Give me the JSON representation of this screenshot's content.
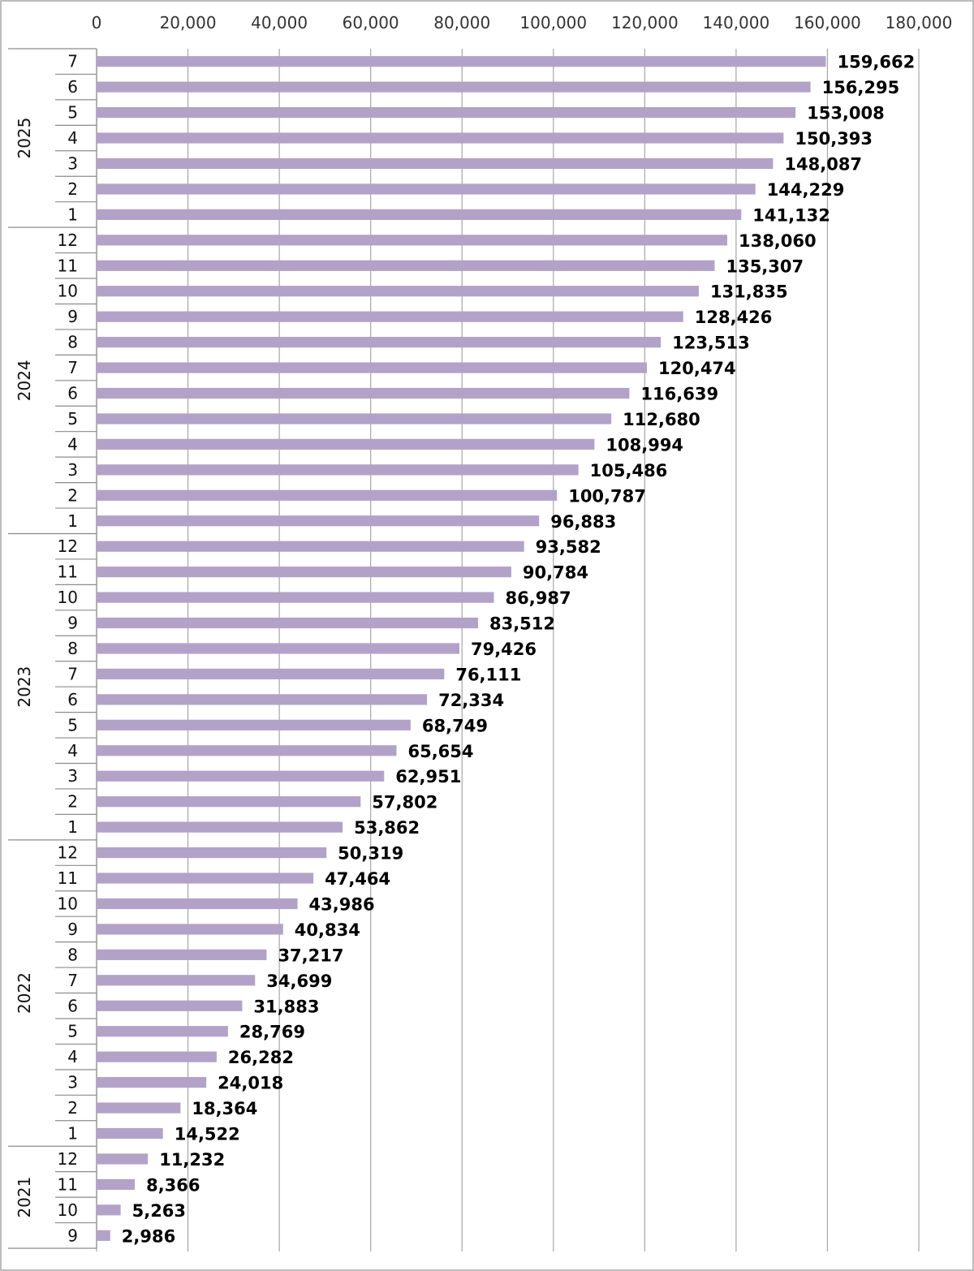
{
  "chart_data": {
    "type": "bar",
    "orientation": "horizontal",
    "title": "",
    "xlabel": "",
    "ylabel": "",
    "xlim": [
      0,
      180000
    ],
    "x_ticks": [
      "0",
      "20,000",
      "40,000",
      "60,000",
      "80,000",
      "100,000",
      "120,000",
      "140,000",
      "160,000",
      "180,000"
    ],
    "x_tick_values": [
      0,
      20000,
      40000,
      60000,
      80000,
      100000,
      120000,
      140000,
      160000,
      180000
    ],
    "x_axis_position": "top",
    "grid": "vertical",
    "legend": "none",
    "bar_color": "#b3a2c8",
    "years": [
      {
        "label": "2025",
        "months": [
          "7",
          "6",
          "5",
          "4",
          "3",
          "2",
          "1"
        ],
        "values": [
          159662,
          156295,
          153008,
          150393,
          148087,
          144229,
          141132
        ],
        "value_labels": [
          "159,662",
          "156,295",
          "153,008",
          "150,393",
          "148,087",
          "144,229",
          "141,132"
        ]
      },
      {
        "label": "2024",
        "months": [
          "12",
          "11",
          "10",
          "9",
          "8",
          "7",
          "6",
          "5",
          "4",
          "3",
          "2",
          "1"
        ],
        "values": [
          138060,
          135307,
          131835,
          128426,
          123513,
          120474,
          116639,
          112680,
          108994,
          105486,
          100787,
          96883
        ],
        "value_labels": [
          "138,060",
          "135,307",
          "131,835",
          "128,426",
          "123,513",
          "120,474",
          "116,639",
          "112,680",
          "108,994",
          "105,486",
          "100,787",
          "96,883"
        ]
      },
      {
        "label": "2023",
        "months": [
          "12",
          "11",
          "10",
          "9",
          "8",
          "7",
          "6",
          "5",
          "4",
          "3",
          "2",
          "1"
        ],
        "values": [
          93582,
          90784,
          86987,
          83512,
          79426,
          76111,
          72334,
          68749,
          65654,
          62951,
          57802,
          53862
        ],
        "value_labels": [
          "93,582",
          "90,784",
          "86,987",
          "83,512",
          "79,426",
          "76,111",
          "72,334",
          "68,749",
          "65,654",
          "62,951",
          "57,802",
          "53,862"
        ]
      },
      {
        "label": "2022",
        "months": [
          "12",
          "11",
          "10",
          "9",
          "8",
          "7",
          "6",
          "5",
          "4",
          "3",
          "2",
          "1"
        ],
        "values": [
          50319,
          47464,
          43986,
          40834,
          37217,
          34699,
          31883,
          28769,
          26282,
          24018,
          18364,
          14522
        ],
        "value_labels": [
          "50,319",
          "47,464",
          "43,986",
          "40,834",
          "37,217",
          "34,699",
          "31,883",
          "28,769",
          "26,282",
          "24,018",
          "18,364",
          "14,522"
        ]
      },
      {
        "label": "2021",
        "months": [
          "12",
          "11",
          "10",
          "9"
        ],
        "values": [
          11232,
          8366,
          5263,
          2986
        ],
        "value_labels": [
          "11,232",
          "8,366",
          "5,263",
          "2,986"
        ]
      }
    ]
  }
}
